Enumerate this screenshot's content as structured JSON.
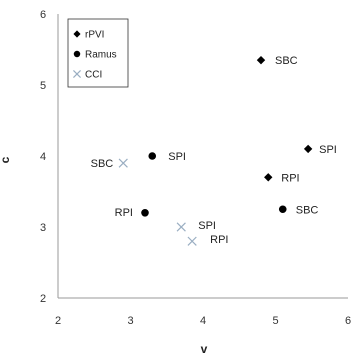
{
  "chart_data": {
    "type": "scatter",
    "title": "",
    "xlabel": "v",
    "ylabel": "c",
    "xlim": [
      2,
      6
    ],
    "ylim": [
      2,
      6
    ],
    "x_ticks": [
      2,
      3,
      4,
      5,
      6
    ],
    "y_ticks": [
      2,
      3,
      4,
      5,
      6
    ],
    "grid": false,
    "legend_position": "top-left",
    "series": [
      {
        "name": "rPVI",
        "marker": "diamond",
        "color": "#000000",
        "points": [
          {
            "label": "SBC",
            "x": 4.8,
            "y": 5.35
          },
          {
            "label": "SPI",
            "x": 5.45,
            "y": 4.1
          },
          {
            "label": "RPI",
            "x": 4.9,
            "y": 3.7
          }
        ]
      },
      {
        "name": "Ramus",
        "marker": "circle",
        "color": "#000000",
        "points": [
          {
            "label": "SPI",
            "x": 3.3,
            "y": 4.0
          },
          {
            "label": "RPI",
            "x": 3.2,
            "y": 3.2
          },
          {
            "label": "SBC",
            "x": 5.1,
            "y": 3.25
          }
        ]
      },
      {
        "name": "CCI",
        "marker": "x",
        "color": "#9aaec2",
        "points": [
          {
            "label": "SBC",
            "x": 2.9,
            "y": 3.9
          },
          {
            "label": "SPI",
            "x": 3.7,
            "y": 3.0
          },
          {
            "label": "RPI",
            "x": 3.85,
            "y": 2.8
          }
        ]
      }
    ]
  }
}
